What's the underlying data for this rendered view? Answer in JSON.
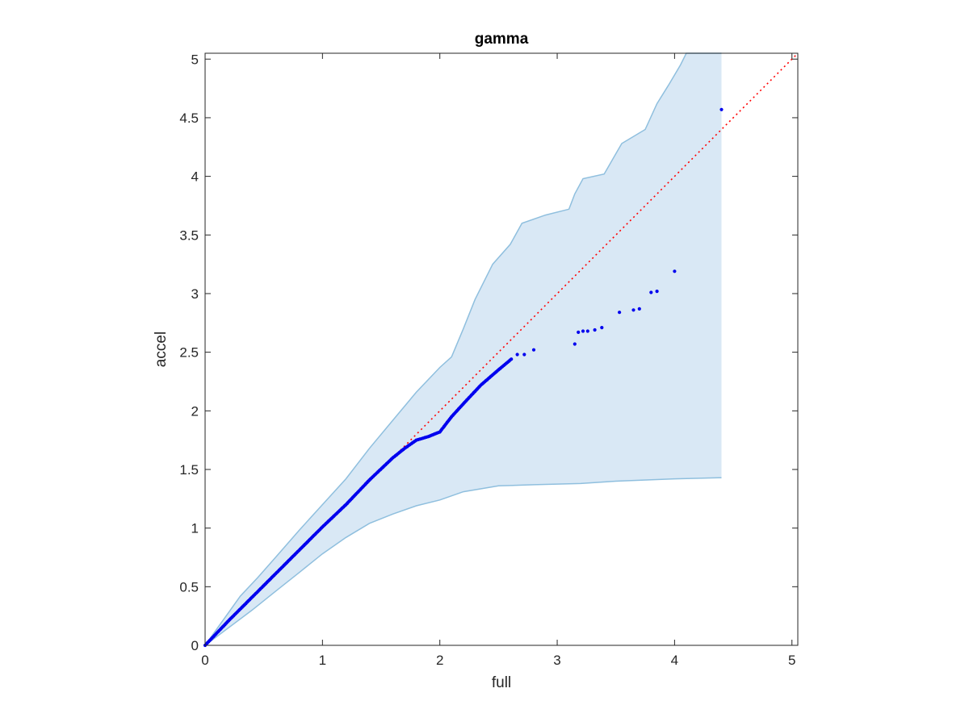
{
  "chart_data": {
    "type": "scatter",
    "title": "gamma",
    "xlabel": "full",
    "ylabel": "accel",
    "xlim": [
      0,
      5.05
    ],
    "ylim": [
      0,
      5.05
    ],
    "xticks": [
      0,
      1,
      2,
      3,
      4,
      5
    ],
    "yticks": [
      0,
      0.5,
      1,
      1.5,
      2,
      2.5,
      3,
      3.5,
      4,
      4.5,
      5
    ],
    "xtick_labels": [
      "0",
      "1",
      "2",
      "3",
      "4",
      "5"
    ],
    "ytick_labels": [
      "0",
      "0.5",
      "1",
      "1.5",
      "2",
      "2.5",
      "3",
      "3.5",
      "4",
      "4.5",
      "5"
    ],
    "grid": false,
    "colors": {
      "points": "#0000ee",
      "reference_line": "#ff0000",
      "band_fill": "#d9e8f5",
      "band_edge": "#8fbfde",
      "axes": "#262626"
    },
    "reference_line": {
      "style": "dotted",
      "from": [
        0,
        0
      ],
      "to": [
        5.05,
        5.05
      ]
    },
    "band_upper": [
      [
        0,
        0
      ],
      [
        0.1,
        0.14
      ],
      [
        0.2,
        0.28
      ],
      [
        0.3,
        0.42
      ],
      [
        0.45,
        0.58
      ],
      [
        0.6,
        0.75
      ],
      [
        0.8,
        0.98
      ],
      [
        1.0,
        1.2
      ],
      [
        1.2,
        1.42
      ],
      [
        1.4,
        1.68
      ],
      [
        1.6,
        1.92
      ],
      [
        1.8,
        2.16
      ],
      [
        2.0,
        2.37
      ],
      [
        2.1,
        2.46
      ],
      [
        2.2,
        2.7
      ],
      [
        2.3,
        2.95
      ],
      [
        2.45,
        3.25
      ],
      [
        2.6,
        3.42
      ],
      [
        2.7,
        3.6
      ],
      [
        2.9,
        3.67
      ],
      [
        3.1,
        3.72
      ],
      [
        3.15,
        3.85
      ],
      [
        3.22,
        3.98
      ],
      [
        3.4,
        4.02
      ],
      [
        3.55,
        4.28
      ],
      [
        3.75,
        4.4
      ],
      [
        3.85,
        4.62
      ],
      [
        3.95,
        4.78
      ],
      [
        4.05,
        4.95
      ],
      [
        4.1,
        5.05
      ],
      [
        4.4,
        5.05
      ]
    ],
    "band_lower": [
      [
        0,
        0
      ],
      [
        0.2,
        0.15
      ],
      [
        0.4,
        0.3
      ],
      [
        0.6,
        0.46
      ],
      [
        0.8,
        0.62
      ],
      [
        1.0,
        0.78
      ],
      [
        1.2,
        0.92
      ],
      [
        1.4,
        1.04
      ],
      [
        1.6,
        1.12
      ],
      [
        1.8,
        1.19
      ],
      [
        2.0,
        1.24
      ],
      [
        2.2,
        1.31
      ],
      [
        2.5,
        1.36
      ],
      [
        2.8,
        1.37
      ],
      [
        3.2,
        1.38
      ],
      [
        3.5,
        1.4
      ],
      [
        4.0,
        1.42
      ],
      [
        4.4,
        1.43
      ]
    ],
    "band_x_end": 4.4,
    "points_curve": [
      [
        0,
        0
      ],
      [
        0.2,
        0.21
      ],
      [
        0.4,
        0.41
      ],
      [
        0.6,
        0.61
      ],
      [
        0.8,
        0.81
      ],
      [
        1.0,
        1.01
      ],
      [
        1.2,
        1.2
      ],
      [
        1.4,
        1.41
      ],
      [
        1.6,
        1.6
      ],
      [
        1.7,
        1.68
      ],
      [
        1.8,
        1.75
      ],
      [
        1.9,
        1.78
      ],
      [
        2.0,
        1.82
      ],
      [
        2.1,
        1.95
      ],
      [
        2.2,
        2.06
      ],
      [
        2.35,
        2.22
      ],
      [
        2.5,
        2.35
      ],
      [
        2.62,
        2.45
      ]
    ],
    "points_sparse": [
      [
        2.66,
        2.48
      ],
      [
        2.72,
        2.48
      ],
      [
        2.8,
        2.52
      ],
      [
        3.15,
        2.57
      ],
      [
        3.18,
        2.67
      ],
      [
        3.22,
        2.68
      ],
      [
        3.26,
        2.68
      ],
      [
        3.32,
        2.69
      ],
      [
        3.38,
        2.71
      ],
      [
        3.53,
        2.84
      ],
      [
        3.65,
        2.86
      ],
      [
        3.7,
        2.87
      ],
      [
        3.8,
        3.01
      ],
      [
        3.85,
        3.02
      ],
      [
        4.0,
        3.19
      ],
      [
        4.4,
        4.57
      ]
    ]
  }
}
